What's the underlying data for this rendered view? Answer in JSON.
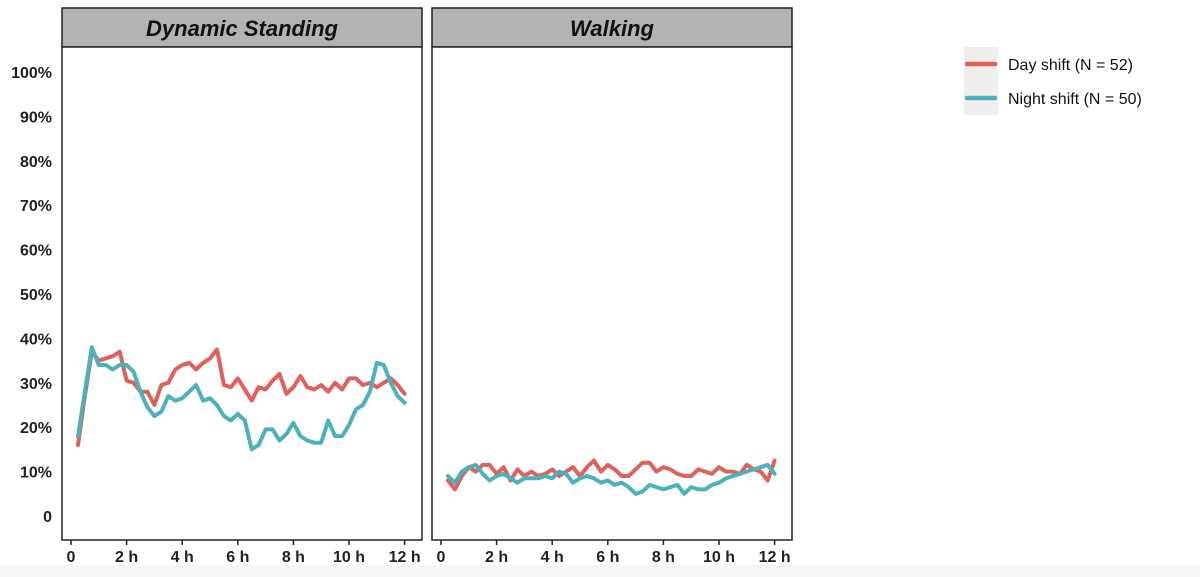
{
  "colors": {
    "day": "#E0605A",
    "night": "#4BB1BB",
    "strip": "#b3b3b3",
    "axis": "#222222"
  },
  "chart_data": {
    "type": "line",
    "facets": [
      "Dynamic Standing",
      "Walking"
    ],
    "xlim": [
      0,
      12
    ],
    "ylim": [
      0,
      100
    ],
    "x_ticks": [
      0,
      2,
      4,
      6,
      8,
      10,
      12
    ],
    "x_tick_labels": [
      "0",
      "2 h",
      "4 h",
      "6 h",
      "8 h",
      "10 h",
      "12 h"
    ],
    "y_ticks": [
      0,
      10,
      20,
      30,
      40,
      50,
      60,
      70,
      80,
      90,
      100
    ],
    "y_tick_labels": [
      "0",
      "10%",
      "20%",
      "30%",
      "40%",
      "50%",
      "60%",
      "70%",
      "80%",
      "90%",
      "100%"
    ],
    "legend": {
      "position": "right",
      "entries": [
        "Day shift (N = 52)",
        "Night shift (N = 50)"
      ]
    },
    "x": [
      0.25,
      0.5,
      0.75,
      1.0,
      1.25,
      1.5,
      1.75,
      2.0,
      2.25,
      2.5,
      2.75,
      3.0,
      3.25,
      3.5,
      3.75,
      4.0,
      4.25,
      4.5,
      4.75,
      5.0,
      5.25,
      5.5,
      5.75,
      6.0,
      6.25,
      6.5,
      6.75,
      7.0,
      7.25,
      7.5,
      7.75,
      8.0,
      8.25,
      8.5,
      8.75,
      9.0,
      9.25,
      9.5,
      9.75,
      10.0,
      10.25,
      10.5,
      10.75,
      11.0,
      11.25,
      11.5,
      11.75,
      12.0
    ],
    "series": [
      {
        "name": "Day shift (N = 52)",
        "facet": "Dynamic Standing",
        "values": [
          16,
          27,
          37,
          35,
          35.5,
          36,
          37,
          30.5,
          30,
          28,
          28,
          25,
          29.5,
          30,
          33,
          34,
          34.5,
          33,
          34.5,
          35.5,
          37.5,
          29.5,
          29,
          31,
          28.5,
          26,
          29,
          28.5,
          30.5,
          32,
          27.5,
          29,
          31.5,
          29,
          28.5,
          29.5,
          28,
          30,
          28.5,
          31,
          31,
          29.5,
          30,
          29,
          30,
          31,
          29.5,
          27.5
        ]
      },
      {
        "name": "Night shift (N = 50)",
        "facet": "Dynamic Standing",
        "values": [
          18,
          28,
          38,
          34,
          34,
          33,
          34,
          34,
          32.5,
          28,
          24.5,
          22.5,
          23.5,
          27,
          26,
          26.5,
          28,
          29.5,
          26,
          26.5,
          25,
          22.5,
          21.5,
          23,
          21.5,
          15,
          16,
          19.5,
          19.5,
          17,
          18.5,
          21,
          18,
          17,
          16.5,
          16.5,
          21.5,
          18,
          18,
          20.5,
          24,
          25,
          28,
          34.5,
          34,
          30,
          27,
          25.5
        ]
      },
      {
        "name": "Day shift (N = 52)",
        "facet": "Walking",
        "values": [
          8,
          6,
          9,
          11,
          10,
          11.5,
          11.5,
          9.5,
          11,
          8,
          10.5,
          9,
          10,
          9,
          9.5,
          10.5,
          9,
          10,
          11,
          9,
          11,
          12.5,
          10,
          11.5,
          10.5,
          9,
          9,
          10.5,
          12,
          12,
          10,
          11,
          10.5,
          9.5,
          9,
          9,
          10.5,
          10,
          9.5,
          11,
          10,
          10,
          9.5,
          11.5,
          10.5,
          10,
          8,
          12.5
        ]
      },
      {
        "name": "Night shift (N = 50)",
        "facet": "Walking",
        "values": [
          9,
          7.5,
          10,
          11,
          11.5,
          9.5,
          8,
          9,
          9.5,
          8.5,
          7.5,
          8.5,
          8.5,
          8.5,
          9,
          8.5,
          10,
          9.5,
          7.5,
          8.5,
          9,
          8.5,
          7.5,
          8,
          7,
          7.5,
          6.5,
          5,
          5.5,
          7,
          6.5,
          6,
          6.5,
          7,
          5,
          6.5,
          6,
          6,
          7,
          7.5,
          8.5,
          9,
          9.5,
          10,
          10.5,
          11,
          11.5,
          9.5
        ]
      }
    ]
  }
}
